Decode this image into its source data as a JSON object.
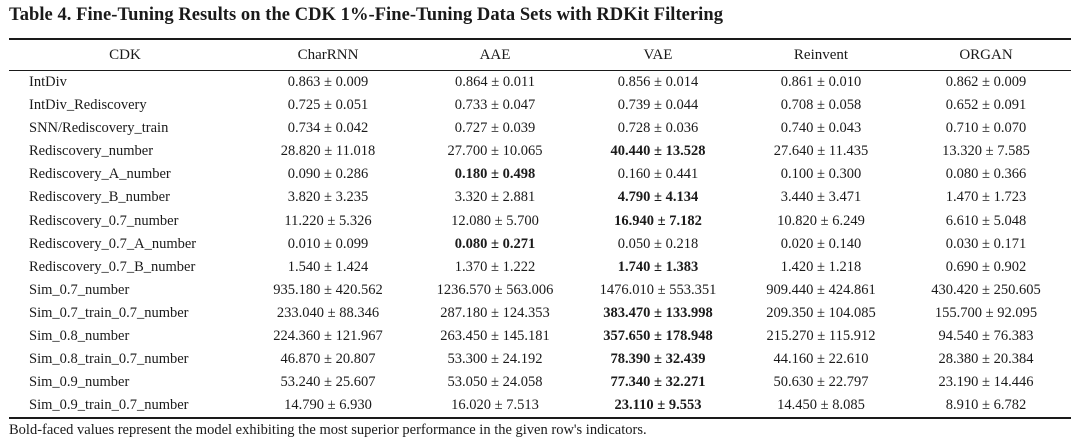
{
  "title": "Table 4. Fine-Tuning Results on the CDK 1%-Fine-Tuning Data Sets with RDKit Filtering",
  "columns": [
    "CDK",
    "CharRNN",
    "AAE",
    "VAE",
    "Reinvent",
    "ORGAN"
  ],
  "rows": [
    {
      "name": "IntDiv",
      "values": [
        "0.863 ± 0.009",
        "0.864 ± 0.011",
        "0.856 ± 0.014",
        "0.861 ± 0.010",
        "0.862 ± 0.009"
      ],
      "bold": []
    },
    {
      "name": "IntDiv_Rediscovery",
      "values": [
        "0.725 ± 0.051",
        "0.733 ± 0.047",
        "0.739 ± 0.044",
        "0.708 ± 0.058",
        "0.652 ± 0.091"
      ],
      "bold": []
    },
    {
      "name": "SNN/Rediscovery_train",
      "values": [
        "0.734 ± 0.042",
        "0.727 ± 0.039",
        "0.728 ± 0.036",
        "0.740 ± 0.043",
        "0.710 ± 0.070"
      ],
      "bold": []
    },
    {
      "name": "Rediscovery_number",
      "values": [
        "28.820 ± 11.018",
        "27.700 ± 10.065",
        "40.440 ± 13.528",
        "27.640 ± 11.435",
        "13.320 ± 7.585"
      ],
      "bold": [
        2
      ]
    },
    {
      "name": "Rediscovery_A_number",
      "values": [
        "0.090 ± 0.286",
        "0.180 ± 0.498",
        "0.160 ± 0.441",
        "0.100 ± 0.300",
        "0.080 ± 0.366"
      ],
      "bold": [
        1
      ]
    },
    {
      "name": "Rediscovery_B_number",
      "values": [
        "3.820 ± 3.235",
        "3.320 ± 2.881",
        "4.790 ± 4.134",
        "3.440 ± 3.471",
        "1.470 ± 1.723"
      ],
      "bold": [
        2
      ]
    },
    {
      "name": "Rediscovery_0.7_number",
      "values": [
        "11.220 ± 5.326",
        "12.080 ± 5.700",
        "16.940 ± 7.182",
        "10.820 ± 6.249",
        "6.610 ± 5.048"
      ],
      "bold": [
        2
      ]
    },
    {
      "name": "Rediscovery_0.7_A_number",
      "values": [
        "0.010 ± 0.099",
        "0.080 ± 0.271",
        "0.050 ± 0.218",
        "0.020 ± 0.140",
        "0.030 ± 0.171"
      ],
      "bold": [
        1
      ]
    },
    {
      "name": "Rediscovery_0.7_B_number",
      "values": [
        "1.540 ± 1.424",
        "1.370 ± 1.222",
        "1.740 ± 1.383",
        "1.420 ± 1.218",
        "0.690 ± 0.902"
      ],
      "bold": [
        2
      ]
    },
    {
      "name": "Sim_0.7_number",
      "values": [
        "935.180 ± 420.562",
        "1236.570 ± 563.006",
        "1476.010 ± 553.351",
        "909.440 ± 424.861",
        "430.420 ± 250.605"
      ],
      "bold": []
    },
    {
      "name": "Sim_0.7_train_0.7_number",
      "values": [
        "233.040 ± 88.346",
        "287.180 ± 124.353",
        "383.470 ± 133.998",
        "209.350 ± 104.085",
        "155.700 ± 92.095"
      ],
      "bold": [
        2
      ]
    },
    {
      "name": "Sim_0.8_number",
      "values": [
        "224.360 ± 121.967",
        "263.450 ± 145.181",
        "357.650 ± 178.948",
        "215.270 ± 115.912",
        "94.540 ± 76.383"
      ],
      "bold": [
        2
      ]
    },
    {
      "name": "Sim_0.8_train_0.7_number",
      "values": [
        "46.870 ± 20.807",
        "53.300 ± 24.192",
        "78.390 ± 32.439",
        "44.160 ± 22.610",
        "28.380 ± 20.384"
      ],
      "bold": [
        2
      ]
    },
    {
      "name": "Sim_0.9_number",
      "values": [
        "53.240 ± 25.607",
        "53.050 ± 24.058",
        "77.340 ± 32.271",
        "50.630 ± 22.797",
        "23.190 ± 14.446"
      ],
      "bold": [
        2
      ]
    },
    {
      "name": "Sim_0.9_train_0.7_number",
      "values": [
        "14.790 ± 6.930",
        "16.020 ± 7.513",
        "23.110 ± 9.553",
        "14.450 ± 8.085",
        "8.910 ± 6.782"
      ],
      "bold": [
        2
      ]
    }
  ],
  "footnote": "Bold-faced values represent the model exhibiting the most superior performance in the given row's indicators."
}
